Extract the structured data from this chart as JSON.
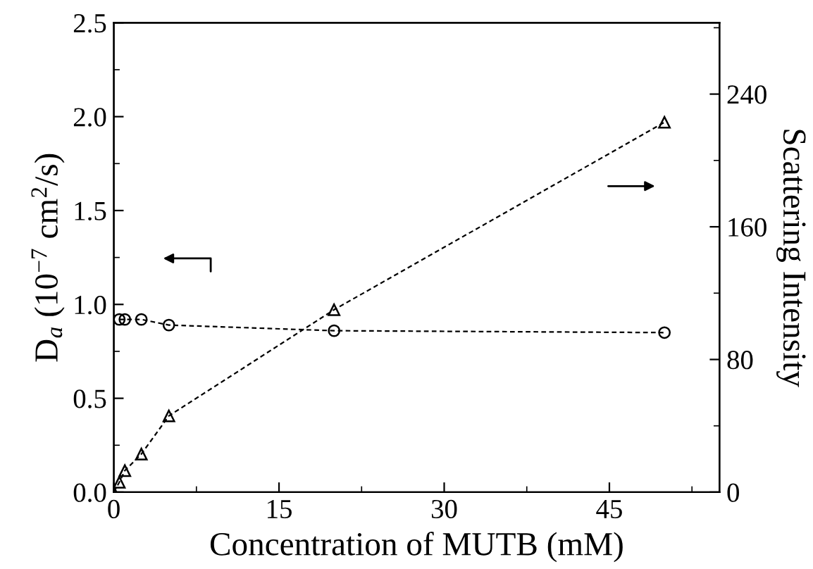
{
  "chart_data": {
    "type": "line",
    "xlabel": "Concentration of MUTB (mM)",
    "ylabel": "D$_{a}$ (10$^{−7}$ cm$^{2}$/s)",
    "y2label": "Scattering Intensity",
    "xlim": [
      0,
      55
    ],
    "xticks": [
      0,
      15,
      30,
      45
    ],
    "ylim": [
      0,
      2.5
    ],
    "yticks": [
      {
        "value": 0,
        "label": "0.0"
      },
      0.5,
      {
        "value": 1,
        "label": "1.0"
      },
      1.5,
      {
        "value": 2,
        "label": "2.0"
      },
      2.5
    ],
    "y2lim": [
      0,
      283
    ],
    "y2ticks": [
      0,
      80,
      160,
      240
    ],
    "grid": false,
    "legend": false,
    "line_style": "dashed",
    "series": [
      {
        "color": "#000000",
        "marker": "circle",
        "x": [
          0.5,
          1,
          2.5,
          5,
          20,
          50
        ],
        "values": [
          0.92,
          0.92,
          0.92,
          0.89,
          0.86,
          0.85
        ]
      },
      {
        "color": "#000000",
        "marker": "triangle",
        "axis": "y2",
        "x": [
          0,
          0.5,
          1,
          2.5,
          5,
          20,
          50
        ],
        "values": [
          0,
          6,
          13,
          23,
          46,
          110,
          223
        ]
      }
    ]
  }
}
